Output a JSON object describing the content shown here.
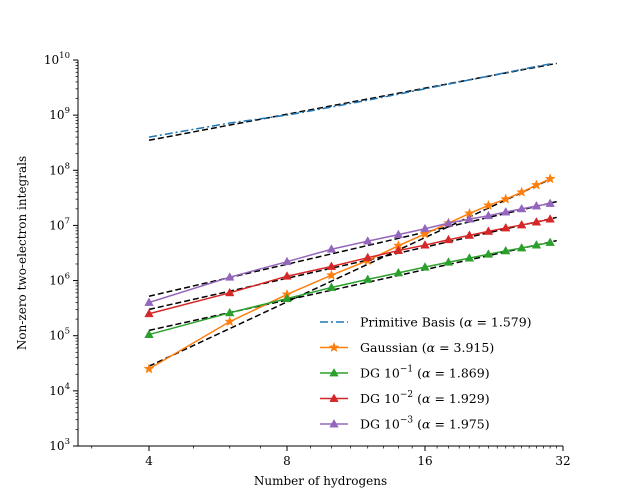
{
  "chart_data": {
    "type": "line",
    "xscale": "log2",
    "yscale": "log10",
    "xlabel": "Number of hydrogens",
    "ylabel": "Non-zero two-electron integrals",
    "xlim": [
      2.8,
      32
    ],
    "ylim": [
      1000,
      10000000000
    ],
    "xticks": [
      4,
      8,
      16,
      32
    ],
    "xtick_labels": [
      "4",
      "8",
      "16",
      "32"
    ],
    "yticks": [
      1000,
      10000,
      100000,
      1000000,
      10000000,
      100000000,
      1000000000,
      10000000000
    ],
    "ytick_labels": [
      {
        "base": "10",
        "exp": "3"
      },
      {
        "base": "10",
        "exp": "4"
      },
      {
        "base": "10",
        "exp": "5"
      },
      {
        "base": "10",
        "exp": "6"
      },
      {
        "base": "10",
        "exp": "7"
      },
      {
        "base": "10",
        "exp": "8"
      },
      {
        "base": "10",
        "exp": "9"
      },
      {
        "base": "10",
        "exp": "10"
      }
    ],
    "grid": false,
    "legend_position": "lower-right",
    "series": [
      {
        "name_prefix": "Primitive Basis (",
        "alpha": "α",
        "name_suffix": " = 1.579)",
        "color": "#1f77b4",
        "linestyle": "dashdot",
        "marker": "none",
        "x": [
          4,
          6,
          8,
          10,
          12,
          14,
          16,
          18,
          20,
          22,
          24,
          26,
          28,
          30
        ],
        "y": [
          400000000,
          720000000,
          1000000000,
          1400000000,
          1870000000,
          2400000000,
          3000000000,
          3650000000,
          4350000000,
          5100000000,
          5900000000,
          6750000000,
          7650000000,
          8500000000
        ],
        "fit": {
          "x0": 4,
          "x1": 31,
          "y0": 350000000,
          "y1": 8700000000
        }
      },
      {
        "name_prefix": "Gaussian (",
        "alpha": "α",
        "name_suffix": " = 3.915)",
        "color": "#ff7f0e",
        "linestyle": "solid",
        "marker": "star",
        "x": [
          4,
          6,
          8,
          10,
          12,
          14,
          16,
          18,
          20,
          22,
          24,
          26,
          28,
          30
        ],
        "y": [
          25000,
          180000,
          560000,
          1250000,
          2300000,
          4300000,
          7000000,
          11000000,
          16500000,
          23000000,
          30000000,
          40000000,
          54000000,
          70000000
        ],
        "fit": {
          "x0": 4,
          "x1": 31,
          "y0": 28000,
          "y1": 78000000
        }
      },
      {
        "name_prefix": "DG 10",
        "exp": "−1",
        "name_mid": " (",
        "alpha": "α",
        "name_suffix": " = 1.869)",
        "color": "#2ca02c",
        "linestyle": "solid",
        "marker": "triangle",
        "x": [
          4,
          6,
          8,
          10,
          12,
          14,
          16,
          18,
          20,
          22,
          24,
          26,
          28,
          30
        ],
        "y": [
          105000,
          260000,
          470000,
          750000,
          1050000,
          1380000,
          1750000,
          2150000,
          2550000,
          3000000,
          3450000,
          3900000,
          4400000,
          4900000
        ],
        "fit": {
          "x0": 4,
          "x1": 31,
          "y0": 125000,
          "y1": 5300000
        }
      },
      {
        "name_prefix": "DG 10",
        "exp": "−2",
        "name_mid": " (",
        "alpha": "α",
        "name_suffix": " = 1.929)",
        "color": "#d62728",
        "linestyle": "solid",
        "marker": "triangle",
        "x": [
          4,
          6,
          8,
          10,
          12,
          14,
          16,
          18,
          20,
          22,
          24,
          26,
          28,
          30
        ],
        "y": [
          250000,
          600000,
          1200000,
          1800000,
          2600000,
          3500000,
          4400000,
          5500000,
          6600000,
          7800000,
          9000000,
          10200000,
          11500000,
          13000000
        ],
        "fit": {
          "x0": 4,
          "x1": 31,
          "y0": 300000,
          "y1": 14000000
        }
      },
      {
        "name_prefix": "DG 10",
        "exp": "−3",
        "name_mid": " (",
        "alpha": "α",
        "name_suffix": " = 1.975)",
        "color": "#9467bd",
        "linestyle": "solid",
        "marker": "triangle",
        "x": [
          4,
          6,
          8,
          10,
          12,
          14,
          16,
          18,
          20,
          22,
          24,
          26,
          28,
          30
        ],
        "y": [
          400000,
          1150000,
          2200000,
          3700000,
          5200000,
          6800000,
          8700000,
          11000000,
          13000000,
          15000000,
          17500000,
          20000000,
          22500000,
          25000000
        ],
        "fit": {
          "x0": 4,
          "x1": 31,
          "y0": 520000,
          "y1": 27000000
        }
      }
    ]
  }
}
